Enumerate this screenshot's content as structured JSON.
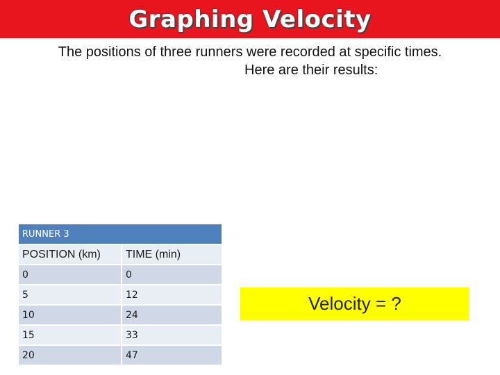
{
  "slide": {
    "title": "Graphing Velocity",
    "intro_line1": "The positions of three runners were recorded at specific times.",
    "intro_line2": "Here are their results:"
  },
  "table": {
    "title": "RUNNER 3",
    "columns": [
      "POSITION (km)",
      "TIME (min)"
    ],
    "rows": [
      [
        "0",
        "0"
      ],
      [
        "5",
        "12"
      ],
      [
        "10",
        "24"
      ],
      [
        "15",
        "33"
      ],
      [
        "20",
        "47"
      ]
    ]
  },
  "velocity_box": {
    "text": "Velocity = ?"
  },
  "colors": {
    "title_bar": "#e8141e",
    "table_header": "#4f81bd",
    "row_dark": "#d0d8e8",
    "row_light": "#e9edf4",
    "highlight": "#ffff00"
  }
}
